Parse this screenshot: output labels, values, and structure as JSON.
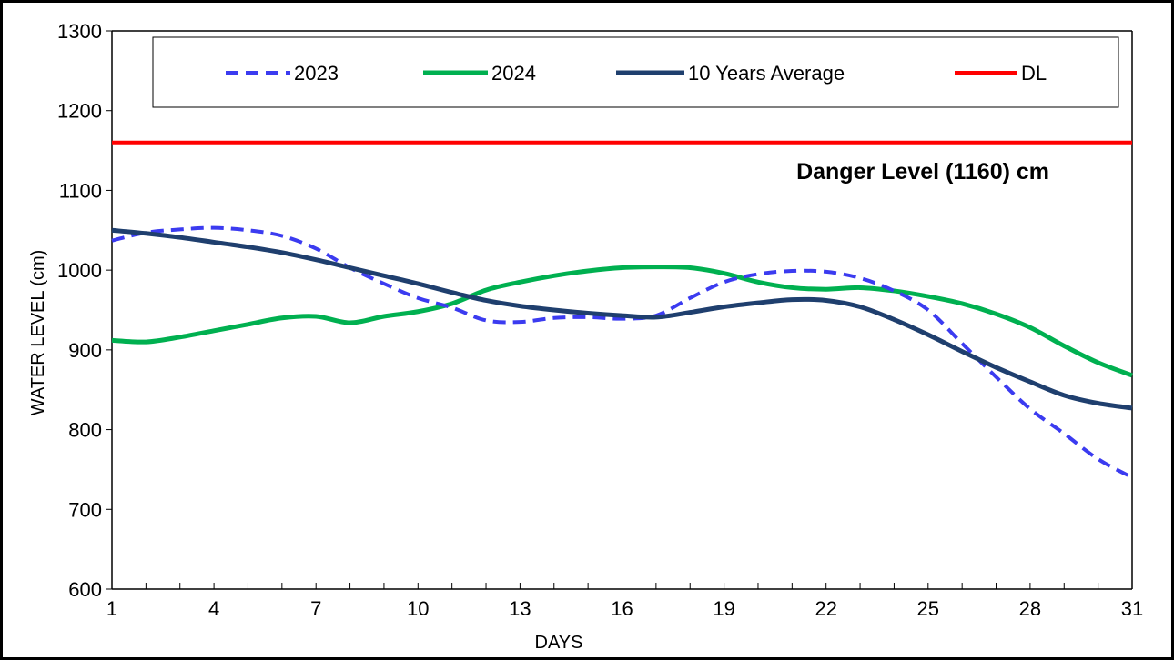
{
  "chart_data": {
    "type": "line",
    "title": "",
    "xlabel": "DAYS",
    "ylabel": "WATER LEVEL (cm)",
    "xlim": [
      1,
      31
    ],
    "ylim": [
      600,
      1300
    ],
    "x_ticks": [
      1,
      4,
      7,
      10,
      13,
      16,
      19,
      22,
      25,
      28,
      31
    ],
    "x_tick_labels": [
      "1",
      "4",
      "7",
      "10",
      "13",
      "16",
      "19",
      "22",
      "25",
      "28",
      "31"
    ],
    "y_ticks": [
      600,
      700,
      800,
      900,
      1000,
      1100,
      1200,
      1300
    ],
    "y_tick_labels": [
      "600",
      "700",
      "800",
      "900",
      "1000",
      "1100",
      "1200",
      "1300"
    ],
    "grid": false,
    "legend_position": "top",
    "annotation": "Danger Level (1160) cm",
    "series": [
      {
        "name": "2023",
        "color": "#3b3bf0",
        "dash": "dashed",
        "x": [
          1,
          2,
          3,
          4,
          5,
          6,
          7,
          8,
          9,
          10,
          11,
          12,
          13,
          14,
          15,
          16,
          17,
          18,
          19,
          20,
          21,
          22,
          23,
          24,
          25,
          26,
          27,
          28,
          29,
          30,
          31
        ],
        "y": [
          1037,
          1047,
          1051,
          1053,
          1050,
          1043,
          1027,
          1003,
          983,
          965,
          953,
          937,
          935,
          940,
          941,
          939,
          943,
          965,
          985,
          995,
          999,
          998,
          990,
          974,
          950,
          908,
          866,
          826,
          795,
          763,
          740
        ]
      },
      {
        "name": "2024",
        "color": "#00b050",
        "dash": "solid",
        "x": [
          1,
          2,
          3,
          4,
          5,
          6,
          7,
          8,
          9,
          10,
          11,
          12,
          13,
          14,
          15,
          16,
          17,
          18,
          19,
          20,
          21,
          22,
          23,
          24,
          25,
          26,
          27,
          28,
          29,
          30,
          31
        ],
        "y": [
          912,
          910,
          916,
          924,
          932,
          940,
          942,
          934,
          942,
          948,
          958,
          975,
          985,
          993,
          999,
          1003,
          1004,
          1003,
          996,
          985,
          978,
          976,
          978,
          974,
          967,
          958,
          945,
          928,
          905,
          884,
          868
        ]
      },
      {
        "name": "10 Years Average",
        "color": "#1f3f6e",
        "dash": "solid",
        "x": [
          1,
          2,
          3,
          4,
          5,
          6,
          7,
          8,
          9,
          10,
          11,
          12,
          13,
          14,
          15,
          16,
          17,
          18,
          19,
          20,
          21,
          22,
          23,
          24,
          25,
          26,
          27,
          28,
          29,
          30,
          31
        ],
        "y": [
          1050,
          1046,
          1041,
          1035,
          1029,
          1022,
          1013,
          1003,
          993,
          983,
          972,
          962,
          955,
          950,
          946,
          943,
          941,
          947,
          954,
          959,
          963,
          962,
          954,
          938,
          919,
          898,
          878,
          860,
          843,
          833,
          827
        ]
      },
      {
        "name": "DL",
        "color": "#ff0000",
        "dash": "solid",
        "x": [
          1,
          31
        ],
        "y": [
          1160,
          1160
        ]
      }
    ]
  }
}
